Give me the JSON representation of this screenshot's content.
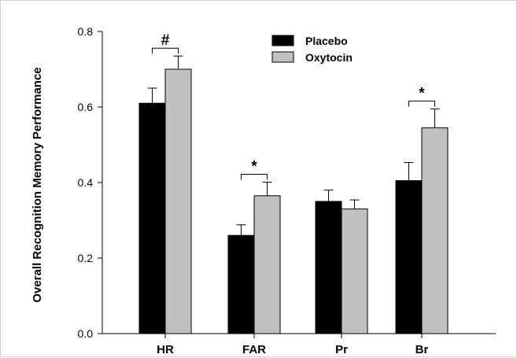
{
  "chart_data": {
    "type": "bar",
    "title": "",
    "xlabel": "",
    "ylabel": "Overall Recognition Memory Performance",
    "ylim": [
      0,
      0.8
    ],
    "yticks": [
      "0.0",
      "0.2",
      "0.4",
      "0.6",
      "0.8"
    ],
    "ytick_values": [
      0,
      0.2,
      0.4,
      0.6,
      0.8
    ],
    "categories": [
      "HR",
      "FAR",
      "Pr",
      "Br"
    ],
    "series": [
      {
        "name": "Placebo",
        "color": "#000000",
        "values": [
          0.61,
          0.26,
          0.35,
          0.405
        ],
        "errors": [
          0.04,
          0.028,
          0.03,
          0.048
        ]
      },
      {
        "name": "Oxytocin",
        "color": "#c0c0c0",
        "values": [
          0.7,
          0.365,
          0.33,
          0.545
        ],
        "errors": [
          0.035,
          0.036,
          0.024,
          0.05
        ]
      }
    ],
    "significance": [
      {
        "category": "HR",
        "label": "#"
      },
      {
        "category": "FAR",
        "label": "*"
      },
      {
        "category": "Br",
        "label": "*"
      }
    ],
    "legend": {
      "position": "top-center"
    },
    "grid": false
  }
}
